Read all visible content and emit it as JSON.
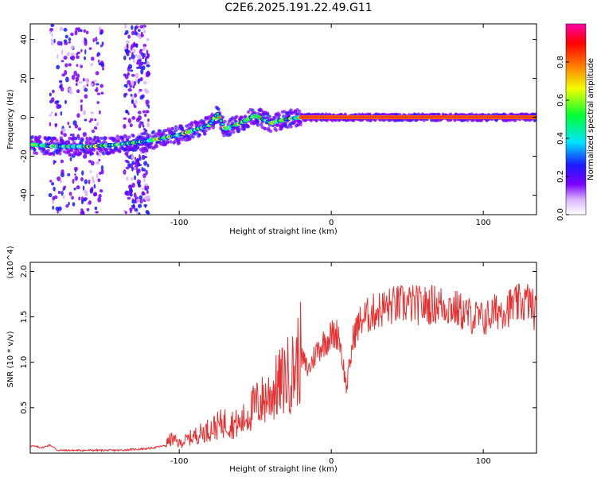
{
  "title": "C2E6.2025.191.22.49.G11",
  "chart_data": [
    {
      "type": "heatmap",
      "xlabel": "Height of straight line (km)",
      "ylabel": "Frequency (Hz)",
      "xlim": [
        -198,
        135
      ],
      "ylim": [
        -50,
        48
      ],
      "xticks": [
        -100,
        0,
        100
      ],
      "xtick_labels": [
        "-100",
        "0",
        "100"
      ],
      "yticks": [
        -40,
        -20,
        0,
        20,
        40
      ],
      "ytick_labels": [
        "-40",
        "-20",
        "0",
        "20",
        "40"
      ],
      "colorbar": {
        "label": "Normalized spectral amplitude",
        "range": [
          0,
          1
        ],
        "ticks": [
          0.0,
          0.2,
          0.4,
          0.6,
          0.8
        ],
        "tick_labels": [
          "0.0",
          "0.2",
          "0.4",
          "0.6",
          "0.8"
        ],
        "colormap": "rainbow (white-violet-blue-cyan-green-yellow-red-magenta)"
      },
      "ridge": {
        "description": "dominant spectral ridge (frequency vs height)",
        "x": [
          -198,
          -180,
          -160,
          -140,
          -120,
          -100,
          -80,
          -75,
          -70,
          -60,
          -50,
          -40,
          -30,
          -20,
          -10,
          0,
          20,
          40,
          60,
          80,
          100,
          120,
          135
        ],
        "y": [
          -14,
          -15,
          -15,
          -14,
          -12,
          -9,
          -4,
          2,
          -6,
          -3,
          1,
          -3,
          -1,
          0,
          0,
          0,
          0,
          0,
          0,
          0,
          0,
          0,
          0
        ]
      },
      "noise_bands_x": [
        [
          -185,
          -150
        ],
        [
          -136,
          -120
        ]
      ]
    },
    {
      "type": "line",
      "xlabel": "Height of straight line (km)",
      "ylabel": "SNR (10 * v/v)",
      "y_multiplier": "(x10^4)",
      "xlim": [
        -198,
        135
      ],
      "ylim": [
        0,
        2.1
      ],
      "xticks": [
        -100,
        0,
        100
      ],
      "xtick_labels": [
        "-100",
        "0",
        "100"
      ],
      "yticks": [
        0.5,
        1.0,
        1.5,
        2.0
      ],
      "ytick_labels": [
        "0.5",
        "1.0",
        "1.5",
        "2.0"
      ],
      "series": [
        {
          "color": "#e83030",
          "x": [
            -198,
            -190,
            -185,
            -180,
            -170,
            -160,
            -150,
            -140,
            -130,
            -120,
            -110,
            -105,
            -100,
            -90,
            -80,
            -70,
            -60,
            -50,
            -45,
            -40,
            -35,
            -30,
            -25,
            -20,
            -15,
            -10,
            -5,
            0,
            5,
            10,
            15,
            20,
            30,
            40,
            50,
            60,
            70,
            80,
            90,
            100,
            110,
            120,
            130,
            135
          ],
          "y": [
            0.08,
            0.06,
            0.09,
            0.03,
            0.03,
            0.03,
            0.03,
            0.03,
            0.04,
            0.05,
            0.08,
            0.15,
            0.1,
            0.18,
            0.25,
            0.32,
            0.3,
            0.5,
            0.55,
            0.62,
            0.7,
            0.8,
            0.85,
            1.05,
            0.9,
            1.1,
            1.2,
            1.28,
            1.3,
            0.7,
            1.3,
            1.45,
            1.55,
            1.6,
            1.62,
            1.6,
            1.62,
            1.58,
            1.5,
            1.45,
            1.55,
            1.6,
            1.65,
            1.5
          ]
        }
      ]
    }
  ]
}
